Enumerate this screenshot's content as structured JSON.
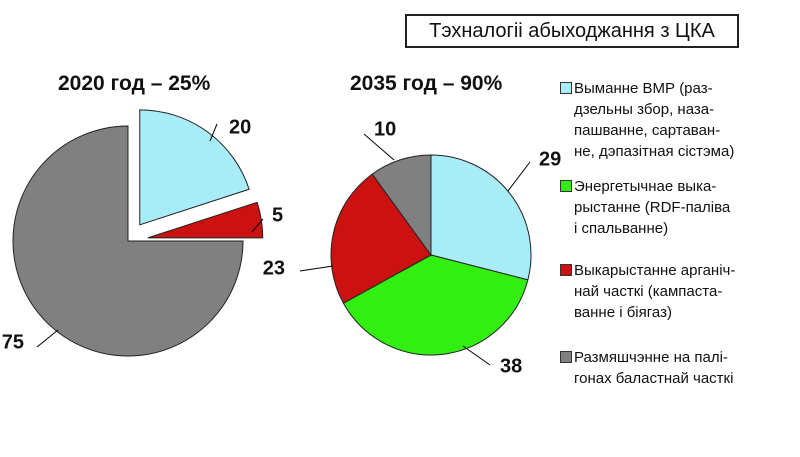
{
  "header": {
    "title": "Тэхналогіі абыходжання з ЦКА"
  },
  "colors": {
    "recycling": "#a8ecf7",
    "energy": "#33ee11",
    "organic": "#cc1111",
    "landfill": "#808080",
    "outline": "#222222",
    "label": "#111111"
  },
  "legend": [
    {
      "color_key": "recycling",
      "icon": "square-swatch",
      "lines": [
        "Выманне ВМР (раз-",
        "дзельны збор, наза-",
        "пашванне, сартаван-",
        "не, дэпазітная сістэма)"
      ]
    },
    {
      "color_key": "energy",
      "icon": "square-swatch",
      "lines": [
        "Энергетычнае выка-",
        "рыстанне (RDF-паліва",
        "і спальванне)"
      ]
    },
    {
      "color_key": "organic",
      "icon": "square-swatch",
      "lines": [
        "Выкарыстанне арганіч-",
        "най часткі (кампаста-",
        "ванне і біягаз)"
      ]
    },
    {
      "color_key": "landfill",
      "icon": "square-swatch",
      "lines": [
        "Размяшчэнне на палі-",
        "гонах баластнай часткі"
      ]
    }
  ],
  "chart_data": [
    {
      "type": "pie",
      "title": "2020 год – 25%",
      "categories": [
        "Выманне ВМР",
        "Энергетычнае выкарыстанне",
        "Выкарыстанне арганічнай часткі",
        "Размяшчэнне на палігонах"
      ],
      "values": [
        20,
        0,
        5,
        75
      ],
      "labels": [
        "20",
        "",
        "5",
        "75"
      ],
      "exploded": [
        true,
        false,
        true,
        false
      ]
    },
    {
      "type": "pie",
      "title": "2035 год – 90%",
      "categories": [
        "Выманне ВМР",
        "Энергетычнае выкарыстанне",
        "Выкарыстанне арганічнай часткі",
        "Размяшчэнне на палігонах"
      ],
      "values": [
        29,
        38,
        23,
        10
      ],
      "labels": [
        "29",
        "38",
        "23",
        "10"
      ],
      "exploded": [
        false,
        false,
        false,
        false
      ]
    }
  ]
}
